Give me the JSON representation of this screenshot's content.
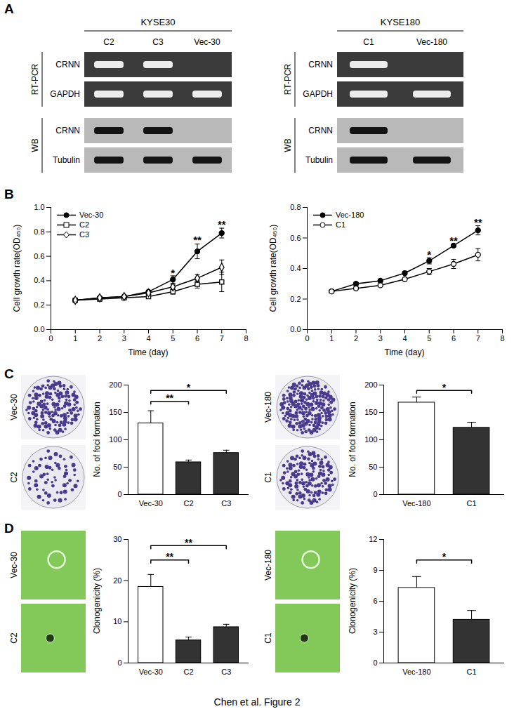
{
  "panel_letters": [
    "A",
    "B",
    "C",
    "D"
  ],
  "caption": "Chen et al. Figure 2",
  "panel_a": {
    "blots": [
      {
        "cell_line": "KYSE30",
        "lanes": [
          "C2",
          "C3",
          "Vec-30"
        ],
        "groups": [
          {
            "label": "RT-PCR",
            "rows": [
              {
                "label": "CRNN",
                "bands": [
                  true,
                  true,
                  false
                ]
              },
              {
                "label": "GAPDH",
                "bands": [
                  true,
                  true,
                  true
                ]
              }
            ]
          },
          {
            "label": "WB",
            "rows": [
              {
                "label": "CRNN",
                "bands": [
                  true,
                  true,
                  false
                ]
              },
              {
                "label": "Tubulin",
                "bands": [
                  true,
                  true,
                  true
                ]
              }
            ]
          }
        ]
      },
      {
        "cell_line": "KYSE180",
        "lanes": [
          "C1",
          "Vec-180"
        ],
        "groups": [
          {
            "label": "RT-PCR",
            "rows": [
              {
                "label": "CRNN",
                "bands": [
                  true,
                  false
                ]
              },
              {
                "label": "GAPDH",
                "bands": [
                  true,
                  true
                ]
              }
            ]
          },
          {
            "label": "WB",
            "rows": [
              {
                "label": "CRNN",
                "bands": [
                  true,
                  false
                ]
              },
              {
                "label": "Tubulin",
                "bands": [
                  true,
                  true
                ]
              }
            ]
          }
        ]
      }
    ]
  },
  "photos_c": [
    [
      "Vec-30",
      "C2"
    ],
    [
      "Vec-180",
      "C1"
    ]
  ],
  "photos_d": [
    [
      "Vec-30",
      "C2"
    ],
    [
      "Vec-180",
      "C1"
    ]
  ],
  "chart_data": [
    {
      "type": "line",
      "x": [
        1,
        2,
        3,
        4,
        5,
        6,
        7
      ],
      "xlim": [
        0,
        8
      ],
      "xticks": [
        0,
        1,
        2,
        3,
        4,
        5,
        6,
        7,
        8
      ],
      "ylim": [
        0,
        1
      ],
      "yticks": [
        {
          "value": 0,
          "label": "0.0"
        },
        0.2,
        0.4,
        0.6,
        0.8,
        {
          "value": 1,
          "label": "1.0"
        }
      ],
      "xlabel": "Time (day)",
      "ylabel": "Cell growth rate(OD₄₅₀)",
      "legend": "top-left",
      "series": [
        {
          "name": "Vec-30",
          "color": "#000000",
          "marker": "circle",
          "values": [
            0.24,
            0.26,
            0.27,
            0.31,
            0.41,
            0.64,
            0.79
          ],
          "errors": [
            0.01,
            0.01,
            0.01,
            0.01,
            0.03,
            0.06,
            0.04
          ]
        },
        {
          "name": "C2",
          "color": "#000000",
          "marker": "square-open",
          "values": [
            0.24,
            0.25,
            0.26,
            0.27,
            0.31,
            0.37,
            0.39
          ],
          "errors": [
            0.01,
            0.01,
            0.01,
            0.01,
            0.02,
            0.03,
            0.08
          ]
        },
        {
          "name": "C3",
          "color": "#000000",
          "marker": "diamond-open",
          "values": [
            0.24,
            0.26,
            0.27,
            0.3,
            0.35,
            0.42,
            0.51
          ],
          "errors": [
            0.01,
            0.01,
            0.01,
            0.01,
            0.02,
            0.03,
            0.06
          ]
        }
      ],
      "annotations": [
        {
          "x": 5,
          "y": 0.46,
          "text": "*"
        },
        {
          "x": 6,
          "y": 0.73,
          "text": "**"
        },
        {
          "x": 7,
          "y": 0.86,
          "text": "**"
        }
      ]
    },
    {
      "type": "line",
      "x": [
        1,
        2,
        3,
        4,
        5,
        6,
        7
      ],
      "xlim": [
        0,
        8
      ],
      "xticks": [
        0,
        1,
        2,
        3,
        4,
        5,
        6,
        7,
        8
      ],
      "ylim": [
        0,
        0.8
      ],
      "yticks": [
        {
          "value": 0,
          "label": "0.0"
        },
        0.2,
        0.4,
        0.6,
        0.8
      ],
      "xlabel": "Time (day)",
      "ylabel": "Cell growth rate(OD₄₅₀)",
      "legend": "top-left",
      "series": [
        {
          "name": "Vec-180",
          "color": "#000000",
          "marker": "circle",
          "values": [
            0.25,
            0.3,
            0.32,
            0.37,
            0.45,
            0.55,
            0.65
          ],
          "errors": [
            0.01,
            0.01,
            0.01,
            0.01,
            0.02,
            0.01,
            0.03
          ]
        },
        {
          "name": "C1",
          "color": "#000000",
          "marker": "circle-open",
          "values": [
            0.25,
            0.27,
            0.29,
            0.33,
            0.38,
            0.43,
            0.49
          ],
          "errors": [
            0.01,
            0.01,
            0.01,
            0.01,
            0.02,
            0.03,
            0.04
          ]
        }
      ],
      "annotations": [
        {
          "x": 5,
          "y": 0.49,
          "text": "*"
        },
        {
          "x": 6,
          "y": 0.58,
          "text": "**"
        },
        {
          "x": 7,
          "y": 0.7,
          "text": "**"
        }
      ]
    },
    {
      "type": "bar",
      "categories": [
        "Vec-30",
        "C2",
        "C3"
      ],
      "values": [
        130,
        59,
        76
      ],
      "errors": [
        23,
        4,
        5
      ],
      "colors": [
        "#ffffff",
        "#333333",
        "#333333"
      ],
      "ylim": [
        0,
        200
      ],
      "yticks": [
        0,
        50,
        100,
        150,
        200
      ],
      "ylabel": "No. of foci formation",
      "significance": [
        {
          "from": "Vec-30",
          "to": "C2",
          "y": 170,
          "label": "**"
        },
        {
          "from": "Vec-30",
          "to": "C3",
          "y": 190,
          "label": "*"
        }
      ]
    },
    {
      "type": "bar",
      "categories": [
        "Vec-180",
        "C1"
      ],
      "values": [
        168,
        122
      ],
      "errors": [
        10,
        10
      ],
      "colors": [
        "#ffffff",
        "#333333"
      ],
      "ylim": [
        0,
        200
      ],
      "yticks": [
        0,
        50,
        100,
        150,
        200
      ],
      "ylabel": "No. of foci formation",
      "significance": [
        {
          "from": "Vec-180",
          "to": "C1",
          "y": 190,
          "label": "*"
        }
      ]
    },
    {
      "type": "bar",
      "categories": [
        "Vec-30",
        "C2",
        "C3"
      ],
      "values": [
        18.5,
        5.5,
        8.7
      ],
      "errors": [
        3,
        0.8,
        0.7
      ],
      "colors": [
        "#ffffff",
        "#333333",
        "#333333"
      ],
      "ylim": [
        0,
        30
      ],
      "yticks": [
        0,
        10,
        20,
        30
      ],
      "ylabel": "Clonogenicity (%)",
      "significance": [
        {
          "from": "Vec-30",
          "to": "C2",
          "y": 25,
          "label": "**"
        },
        {
          "from": "Vec-30",
          "to": "C3",
          "y": 28.5,
          "label": "**"
        }
      ]
    },
    {
      "type": "bar",
      "categories": [
        "Vec-180",
        "C1"
      ],
      "values": [
        7.3,
        4.2
      ],
      "errors": [
        1.1,
        0.9
      ],
      "colors": [
        "#ffffff",
        "#333333"
      ],
      "ylim": [
        0,
        12
      ],
      "yticks": [
        0,
        3,
        6,
        9,
        12
      ],
      "ylabel": "Clonogenicity (%)",
      "significance": [
        {
          "from": "Vec-180",
          "to": "C1",
          "y": 10,
          "label": "*"
        }
      ]
    }
  ]
}
